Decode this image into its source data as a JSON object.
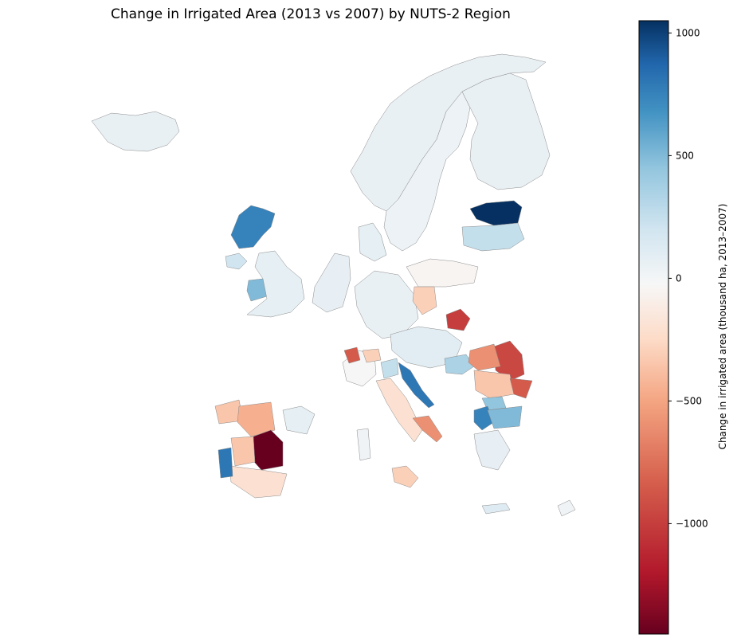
{
  "chart_data": {
    "type": "choropleth",
    "title": "Change in Irrigated Area (2013 vs 2007) by NUTS-2 Region",
    "colormap": "RdBu",
    "colorbar": {
      "label": "Change in irrigated area (thousand ha, 2013–2007)",
      "vmin": -1450,
      "vmax": 1050,
      "ticks": [
        1000,
        500,
        0,
        -500,
        -1000
      ],
      "tick_labels": [
        "1000",
        "500",
        "0",
        "−500",
        "−1000"
      ],
      "placement": "right"
    },
    "regions": [
      {
        "name": "Iceland",
        "value": 60
      },
      {
        "name": "Norway",
        "value": 60
      },
      {
        "name": "Sweden",
        "value": 40
      },
      {
        "name": "Finland",
        "value": 60
      },
      {
        "name": "Estonia",
        "value": 1050
      },
      {
        "name": "Latvia",
        "value": 250
      },
      {
        "name": "Denmark",
        "value": 80
      },
      {
        "name": "Scotland Highlands",
        "value": 750
      },
      {
        "name": "Northern Ireland",
        "value": 200
      },
      {
        "name": "Wales",
        "value": 500
      },
      {
        "name": "England",
        "value": 80
      },
      {
        "name": "Benelux",
        "value": 70
      },
      {
        "name": "Germany",
        "value": 60
      },
      {
        "name": "Poland NW",
        "value": -50
      },
      {
        "name": "Poland Central",
        "value": -300
      },
      {
        "name": "Poland Lubelskie",
        "value": -1000
      },
      {
        "name": "Czechia/Austria",
        "value": 100
      },
      {
        "name": "Hungary",
        "value": 350
      },
      {
        "name": "Romania NE",
        "value": -950
      },
      {
        "name": "Romania NW",
        "value": -600
      },
      {
        "name": "Romania Central",
        "value": -350
      },
      {
        "name": "Romania SE",
        "value": -850
      },
      {
        "name": "Bulgaria NW",
        "value": 450
      },
      {
        "name": "Bulgaria SW",
        "value": 750
      },
      {
        "name": "Bulgaria South",
        "value": 500
      },
      {
        "name": "Croatia Adriatic",
        "value": 800
      },
      {
        "name": "France",
        "value": -30
      },
      {
        "name": "Piemonte",
        "value": -850
      },
      {
        "name": "Lombardia",
        "value": -300
      },
      {
        "name": "Veneto",
        "value": 250
      },
      {
        "name": "Central Italy",
        "value": -200
      },
      {
        "name": "Puglia",
        "value": -600
      },
      {
        "name": "Sicily",
        "value": -300
      },
      {
        "name": "Sardinia",
        "value": 20
      },
      {
        "name": "Galicia",
        "value": -350
      },
      {
        "name": "Castilla y León",
        "value": -450
      },
      {
        "name": "Castilla-La Mancha",
        "value": -1450
      },
      {
        "name": "Extremadura",
        "value": -350
      },
      {
        "name": "Andalucía",
        "value": -200
      },
      {
        "name": "Alentejo",
        "value": 800
      },
      {
        "name": "Catalonia",
        "value": 80
      },
      {
        "name": "Greece",
        "value": 70
      },
      {
        "name": "Crete",
        "value": 120
      },
      {
        "name": "Cyprus",
        "value": 20
      }
    ]
  }
}
